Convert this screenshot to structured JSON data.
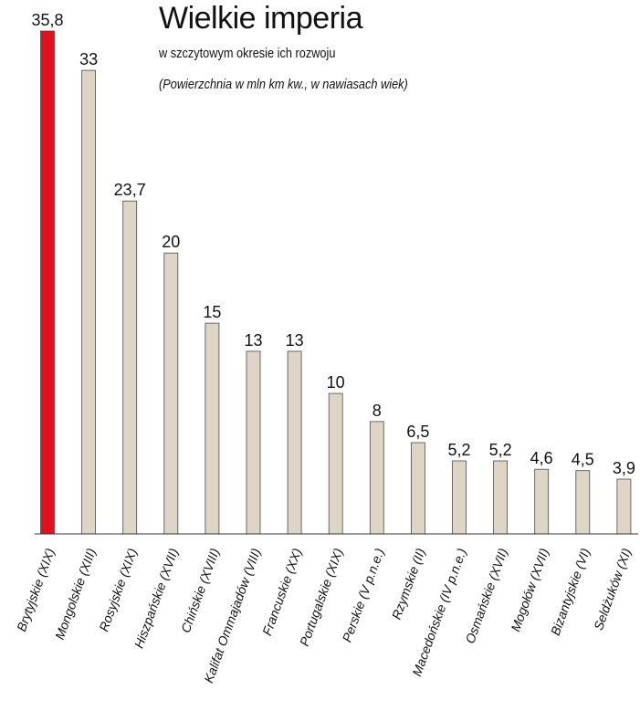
{
  "header": {
    "title": "Wielkie imperia",
    "subtitle": "w szczytowym okresie ich rozwoju",
    "note": "(Powierzchnia w mln km kw., w nawiasach wiek)"
  },
  "colors": {
    "highlight": "#e3101b",
    "bar": "#ddd5c5",
    "bar_stroke": "#4a4a4a",
    "axis": "#333333"
  },
  "chart_data": {
    "type": "bar",
    "title": "Wielkie imperia",
    "subtitle": "w szczytowym okresie ich rozwoju",
    "note": "(Powierzchnia w mln km kw., w nawiasach wiek)",
    "categories": [
      "Brytyjskie (XIX)",
      "Mongolskie (XIII)",
      "Rosyjskie (XIX)",
      "Hiszpańskie (XVII)",
      "Chińskie (XVIII)",
      "Kalifat Ommajadów (VIII)",
      "Francuskie (XX)",
      "Portugalskie (XIX)",
      "Perskie (V p.n.e.)",
      "Rzymskie (II)",
      "Macedońskie (IV p.n.e.)",
      "Osmańskie (XVII)",
      "Mogołów (XVII)",
      "Bizantyjskie (VI)",
      "Seldżuków (XI)"
    ],
    "values": [
      35.8,
      33,
      23.7,
      20,
      15,
      13,
      13,
      10,
      8,
      6.5,
      5.2,
      5.2,
      4.6,
      4.5,
      3.9
    ],
    "value_labels": [
      "35,8",
      "33",
      "23,7",
      "20",
      "15",
      "13",
      "13",
      "10",
      "8",
      "6,5",
      "5,2",
      "5,2",
      "4,6",
      "4,5",
      "3,9"
    ],
    "highlighted_index": 0,
    "ylim": [
      0,
      35.8
    ],
    "grid": false,
    "legend": "none",
    "xlabel": "",
    "ylabel": ""
  }
}
